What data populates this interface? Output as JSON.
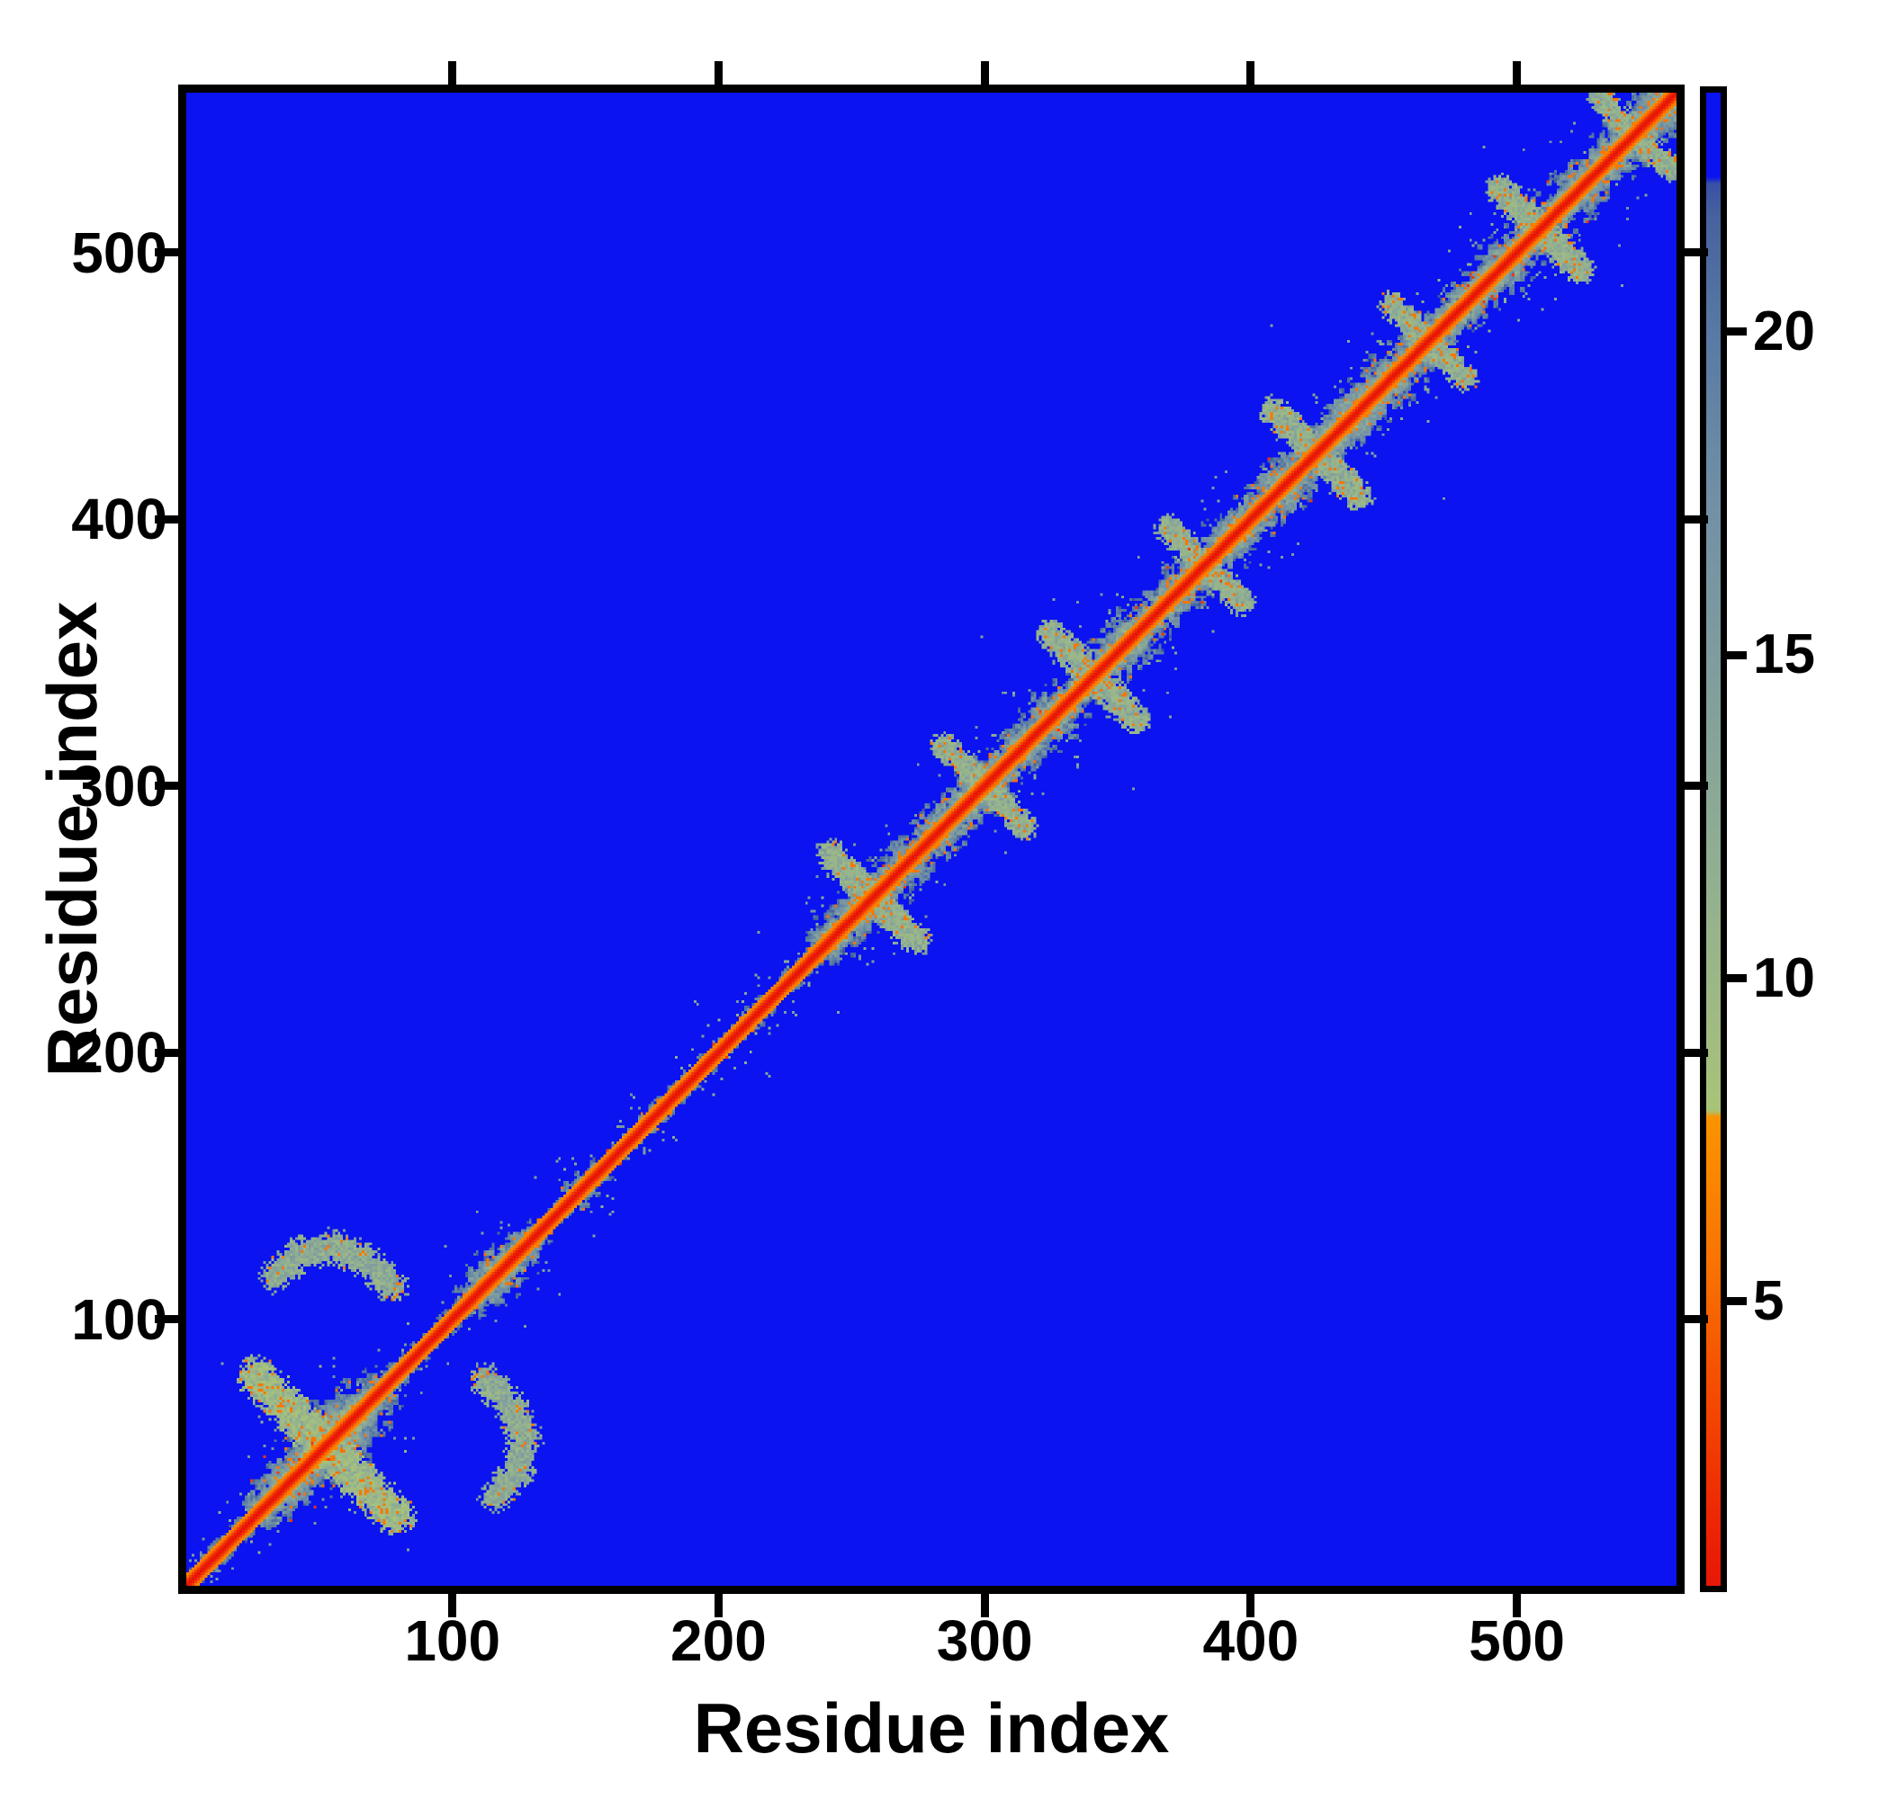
{
  "figure": {
    "axes": {
      "xlabel": "Residue index",
      "ylabel": "Residue index",
      "x_ticks": [
        100,
        200,
        300,
        400,
        500
      ],
      "y_ticks": [
        100,
        200,
        300,
        400,
        500
      ],
      "x_range": [
        0,
        560
      ],
      "y_range": [
        0,
        560
      ]
    },
    "colorbar": {
      "ticks": [
        5,
        10,
        15,
        20
      ],
      "range": [
        0.6,
        23.7
      ]
    }
  },
  "chart_data": {
    "type": "heatmap",
    "title": "",
    "xlabel": "Residue index",
    "ylabel": "Residue index",
    "x_range": [
      0,
      560
    ],
    "y_range": [
      0,
      560
    ],
    "n_residues": 561,
    "description": "Symmetric residue-residue distance map: red diagonal (short distances), orange fringe, sage/steel halo of contacts along the diagonal, solid blue background at the colormap maximum.",
    "background_value": 23.5,
    "background_color": "#0a13f0",
    "colorbar_range": [
      0.6,
      23.7
    ],
    "colorbar_ticks": [
      5,
      10,
      15,
      20
    ],
    "colormap_stops": [
      [
        0.0,
        "#e40f08"
      ],
      [
        1.5,
        "#ee2405"
      ],
      [
        3.5,
        "#f54a00"
      ],
      [
        5.5,
        "#f97200"
      ],
      [
        7.85,
        "#fb9400"
      ],
      [
        7.95,
        "#a9c478"
      ],
      [
        9.5,
        "#9fba84"
      ],
      [
        12.0,
        "#8fae93"
      ],
      [
        15.0,
        "#7f9c9f"
      ],
      [
        17.5,
        "#7190a6"
      ],
      [
        20.0,
        "#587aa4"
      ],
      [
        21.8,
        "#47629e"
      ],
      [
        22.3,
        "#3a51a6"
      ],
      [
        22.4,
        "#0a13f0"
      ],
      [
        24.0,
        "#0a13f0"
      ]
    ],
    "diagonal": {
      "core_halfwidth_res": 2.2,
      "orange_halfwidth_res": 4.5,
      "base_halo_halfwidth_res": 4.8
    },
    "diagonal_blobs": [
      {
        "c": 52,
        "r": 30,
        "w": 11
      },
      {
        "c": 118,
        "r": 16,
        "w": 7
      },
      {
        "c": 150,
        "r": 7,
        "w": 2
      },
      {
        "c": 244,
        "r": 9,
        "w": 6
      },
      {
        "c": 258,
        "r": 10,
        "w": 8
      },
      {
        "c": 272,
        "r": 9,
        "w": 6
      },
      {
        "c": 286,
        "r": 10,
        "w": 7
      },
      {
        "c": 300,
        "r": 10,
        "w": 8
      },
      {
        "c": 314,
        "r": 9,
        "w": 6
      },
      {
        "c": 327,
        "r": 10,
        "w": 8
      },
      {
        "c": 341,
        "r": 9,
        "w": 6
      },
      {
        "c": 355,
        "r": 10,
        "w": 8
      },
      {
        "c": 369,
        "r": 9,
        "w": 6
      },
      {
        "c": 383,
        "r": 10,
        "w": 8
      },
      {
        "c": 397,
        "r": 9,
        "w": 7
      },
      {
        "c": 411,
        "r": 10,
        "w": 8
      },
      {
        "c": 425,
        "r": 9,
        "w": 6
      },
      {
        "c": 439,
        "r": 10,
        "w": 8
      },
      {
        "c": 453,
        "r": 9,
        "w": 7
      },
      {
        "c": 467,
        "r": 10,
        "w": 8
      },
      {
        "c": 481,
        "r": 9,
        "w": 6
      },
      {
        "c": 495,
        "r": 10,
        "w": 8
      },
      {
        "c": 509,
        "r": 9,
        "w": 7
      },
      {
        "c": 523,
        "r": 10,
        "w": 8
      },
      {
        "c": 537,
        "r": 9,
        "w": 7
      },
      {
        "c": 550,
        "r": 10,
        "w": 8
      },
      {
        "c": 560,
        "r": 8,
        "w": 6
      }
    ],
    "antidiagonal_arms": [
      {
        "c": 52,
        "l": 26,
        "th": 6,
        "lv": 11
      },
      {
        "c": 258,
        "l": 16,
        "th": 4.5,
        "lv": 12.5
      },
      {
        "c": 300,
        "l": 15,
        "th": 4,
        "lv": 12.5
      },
      {
        "c": 341,
        "l": 16,
        "th": 4.5,
        "lv": 12.5
      },
      {
        "c": 383,
        "l": 14,
        "th": 4,
        "lv": 12.5
      },
      {
        "c": 425,
        "l": 16,
        "th": 4.5,
        "lv": 12.5
      },
      {
        "c": 467,
        "l": 14,
        "th": 4,
        "lv": 12.5
      },
      {
        "c": 509,
        "l": 15,
        "th": 4.5,
        "lv": 12.5
      },
      {
        "c": 545,
        "l": 13,
        "th": 4,
        "lv": 12.5
      }
    ],
    "offdiagonal_arcs": [
      {
        "pts": [
          [
            33,
            116
          ],
          [
            42,
            124
          ],
          [
            55,
            127
          ],
          [
            67,
            122
          ],
          [
            77,
            112
          ]
        ],
        "th": 5,
        "lv": 12.5
      }
    ]
  }
}
